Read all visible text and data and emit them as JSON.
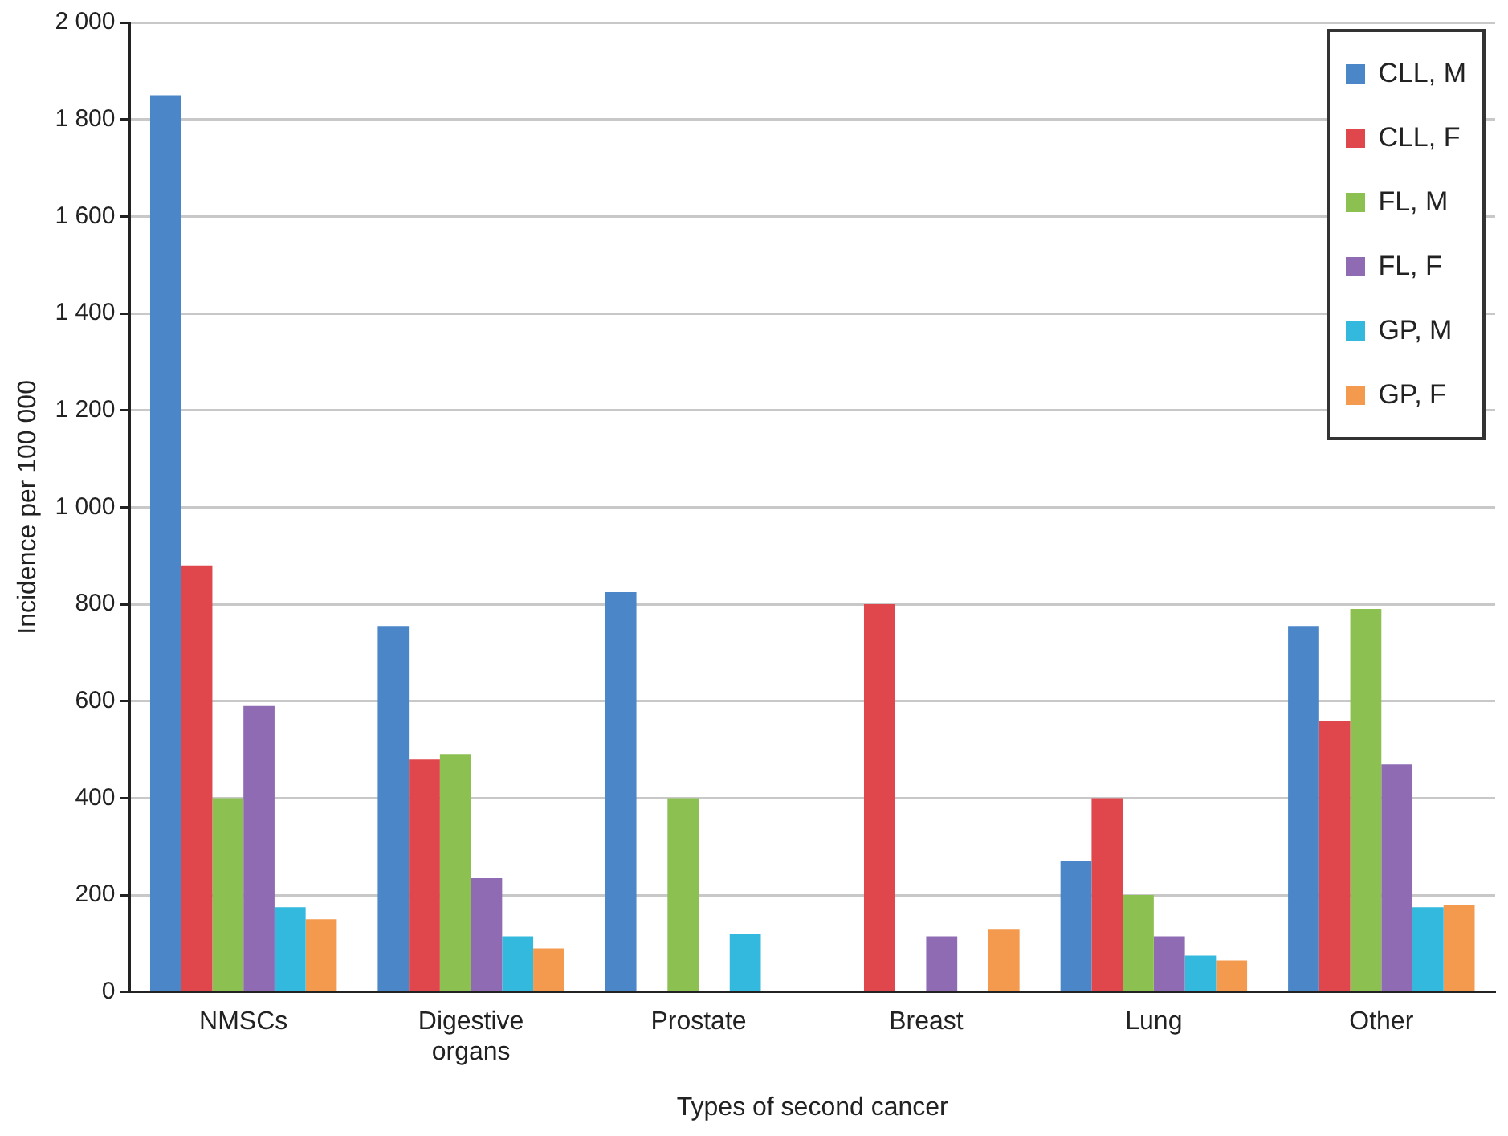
{
  "chart_data": {
    "type": "bar",
    "xlabel": "Types of second cancer",
    "ylabel": "Incidence per 100 000",
    "categories": [
      "NMSCs",
      "Digestive organs",
      "Prostate",
      "Breast",
      "Lung",
      "Other"
    ],
    "series": [
      {
        "name": "CLL, M",
        "color": "#4a86c8",
        "values": [
          1850,
          755,
          825,
          null,
          270,
          755
        ]
      },
      {
        "name": "CLL, F",
        "color": "#e0474c",
        "values": [
          880,
          480,
          null,
          800,
          400,
          560
        ]
      },
      {
        "name": "FL, M",
        "color": "#8cc152",
        "values": [
          400,
          490,
          400,
          null,
          200,
          790
        ]
      },
      {
        "name": "FL, F",
        "color": "#8e6bb3",
        "values": [
          590,
          235,
          null,
          115,
          115,
          470
        ]
      },
      {
        "name": "GP, M",
        "color": "#33b9dd",
        "values": [
          175,
          115,
          120,
          null,
          75,
          175
        ]
      },
      {
        "name": "GP, F",
        "color": "#f39a4e",
        "values": [
          150,
          90,
          null,
          130,
          65,
          180
        ]
      }
    ],
    "ylim": [
      0,
      2000
    ],
    "yticks": [
      0,
      200,
      400,
      600,
      800,
      {
        "value": 1000,
        "label": "1 000"
      },
      {
        "value": 1200,
        "label": "1 200"
      },
      {
        "value": 1400,
        "label": "1 400"
      },
      {
        "value": 1600,
        "label": "1 600"
      },
      {
        "value": 1800,
        "label": "1 800"
      },
      {
        "value": 2000,
        "label": "2 000"
      }
    ],
    "grid": "y",
    "legend": "top right"
  }
}
